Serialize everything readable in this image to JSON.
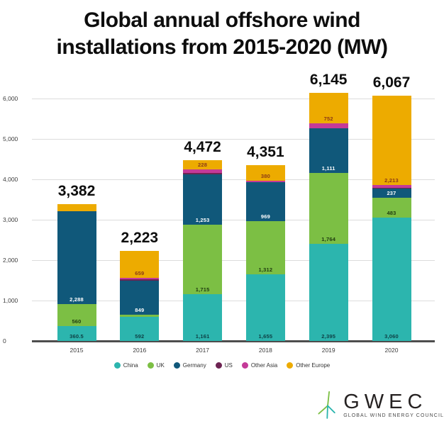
{
  "title": {
    "line1": "Global annual offshore wind",
    "line2": "installations from 2015-2020 (MW)"
  },
  "chart_data": {
    "type": "bar",
    "stacked": true,
    "title": "Global annual offshore wind installations from 2015-2020 (MW)",
    "xlabel": "",
    "ylabel": "",
    "grid": true,
    "categories": [
      "2015",
      "2016",
      "2017",
      "2018",
      "2019",
      "2020"
    ],
    "y_axis": {
      "min": 0,
      "max": 6000,
      "tick_step": 1000,
      "tick_labels": [
        "0",
        "1,000",
        "2,000",
        "3,000",
        "4,000",
        "5,000",
        "6,000"
      ]
    },
    "totals": {
      "values": [
        3382,
        2223,
        4472,
        4351,
        6145,
        6067
      ],
      "labels": [
        "3,382",
        "2,223",
        "4,472",
        "4,351",
        "6,145",
        "6,067"
      ]
    },
    "series": [
      {
        "name": "China",
        "color": "#2cb5ae",
        "label_color": "#0e3f44",
        "values": [
          360.5,
          592,
          1161,
          1655,
          2395,
          3060
        ],
        "segment_labels": [
          "360.5",
          "592",
          "1,161",
          "1,655",
          "2,395",
          "3,060"
        ]
      },
      {
        "name": "UK",
        "color": "#7cbf44",
        "label_color": "#1e3a10",
        "values": [
          560,
          56,
          1715,
          1312,
          1764,
          483
        ],
        "segment_labels": [
          "560",
          "",
          "1,715",
          "1,312",
          "1,764",
          "483"
        ]
      },
      {
        "name": "Germany",
        "color": "#10587a",
        "label_color": "#ffffff",
        "values": [
          2288,
          849,
          1253,
          969,
          1111,
          237
        ],
        "segment_labels": [
          "2,288",
          "849",
          "1,253",
          "969",
          "1,111",
          "237"
        ]
      },
      {
        "name": "US",
        "color": "#6d2352",
        "label_color": "#ffffff",
        "values": [
          0,
          30,
          30,
          0,
          0,
          12
        ],
        "segment_labels": [
          "",
          "",
          "",
          "",
          "",
          ""
        ]
      },
      {
        "name": "Other Asia",
        "color": "#c43a98",
        "label_color": "#ffffff",
        "values": [
          0,
          37,
          85,
          35,
          123,
          62
        ],
        "segment_labels": [
          "",
          "",
          "",
          "",
          "",
          ""
        ]
      },
      {
        "name": "Other Europe",
        "color": "#edab00",
        "label_color": "#8a3a17",
        "values": [
          173.5,
          659,
          228,
          380,
          752,
          2213
        ],
        "segment_labels": [
          "",
          "659",
          "228",
          "380",
          "752",
          "2,213"
        ]
      }
    ],
    "legend": {
      "position": "bottom",
      "entries": [
        "China",
        "UK",
        "Germany",
        "US",
        "Other Asia",
        "Other Europe"
      ]
    }
  },
  "logo": {
    "name": "GWEC",
    "subtitle": "GLOBAL WIND ENERGY COUNCIL",
    "turbine_colors": {
      "green": "#7cbf44",
      "teal": "#2cb5ae"
    }
  }
}
